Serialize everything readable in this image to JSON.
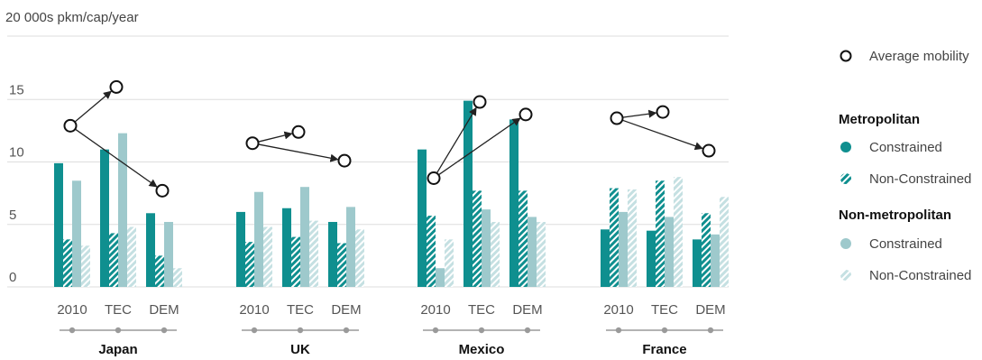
{
  "colors": {
    "metro": "#0f8f8f",
    "nonmetro": "#9ec9cc",
    "nonmetro_hatch": "#c5e0e2",
    "grid": "#dddddd",
    "dots": "#9a9a9a"
  },
  "legend": {
    "average_label": "Average mobility",
    "metro_heading": "Metropolitan",
    "metro_constrained": "Constrained",
    "metro_nonconstrained": "Non-Constrained",
    "nonmetro_heading": "Non-metropolitan",
    "nonmetro_constrained": "Constrained",
    "nonmetro_nonconstrained": "Non-Constrained"
  },
  "chart_data": {
    "type": "bar",
    "ylabel": "20 000s pkm/cap/year",
    "ylim": [
      0,
      20
    ],
    "yticks": [
      0,
      5,
      10,
      15
    ],
    "grid": true,
    "legend_position": "right",
    "scenarios": [
      "2010",
      "TEC",
      "DEM"
    ],
    "series": [
      {
        "name": "Metropolitan Constrained"
      },
      {
        "name": "Metropolitan Non-Constrained"
      },
      {
        "name": "Non-metropolitan Constrained"
      },
      {
        "name": "Non-metropolitan Non-Constrained"
      },
      {
        "name": "Average mobility"
      }
    ],
    "groups": [
      {
        "country": "Japan",
        "values": [
          [
            9.9,
            3.8,
            8.5,
            3.3
          ],
          [
            11.0,
            4.3,
            12.3,
            4.8
          ],
          [
            5.9,
            2.5,
            5.2,
            1.5
          ]
        ],
        "average": [
          12.9,
          16.0,
          7.7
        ]
      },
      {
        "country": "UK",
        "values": [
          [
            6.0,
            3.6,
            7.6,
            4.8
          ],
          [
            6.3,
            4.0,
            8.0,
            5.3
          ],
          [
            5.2,
            3.5,
            6.4,
            4.6
          ]
        ],
        "average": [
          11.5,
          12.4,
          10.1
        ]
      },
      {
        "country": "Mexico",
        "values": [
          [
            11.0,
            5.7,
            1.5,
            3.8
          ],
          [
            14.9,
            7.7,
            6.2,
            5.2
          ],
          [
            13.4,
            7.7,
            5.6,
            5.2
          ]
        ],
        "average": [
          8.7,
          14.8,
          13.8
        ]
      },
      {
        "country": "France",
        "values": [
          [
            4.6,
            7.9,
            6.0,
            7.8
          ],
          [
            4.5,
            8.5,
            5.6,
            8.8
          ],
          [
            3.8,
            5.9,
            4.2,
            7.2
          ]
        ],
        "average": [
          13.5,
          14.0,
          10.9
        ]
      }
    ]
  }
}
